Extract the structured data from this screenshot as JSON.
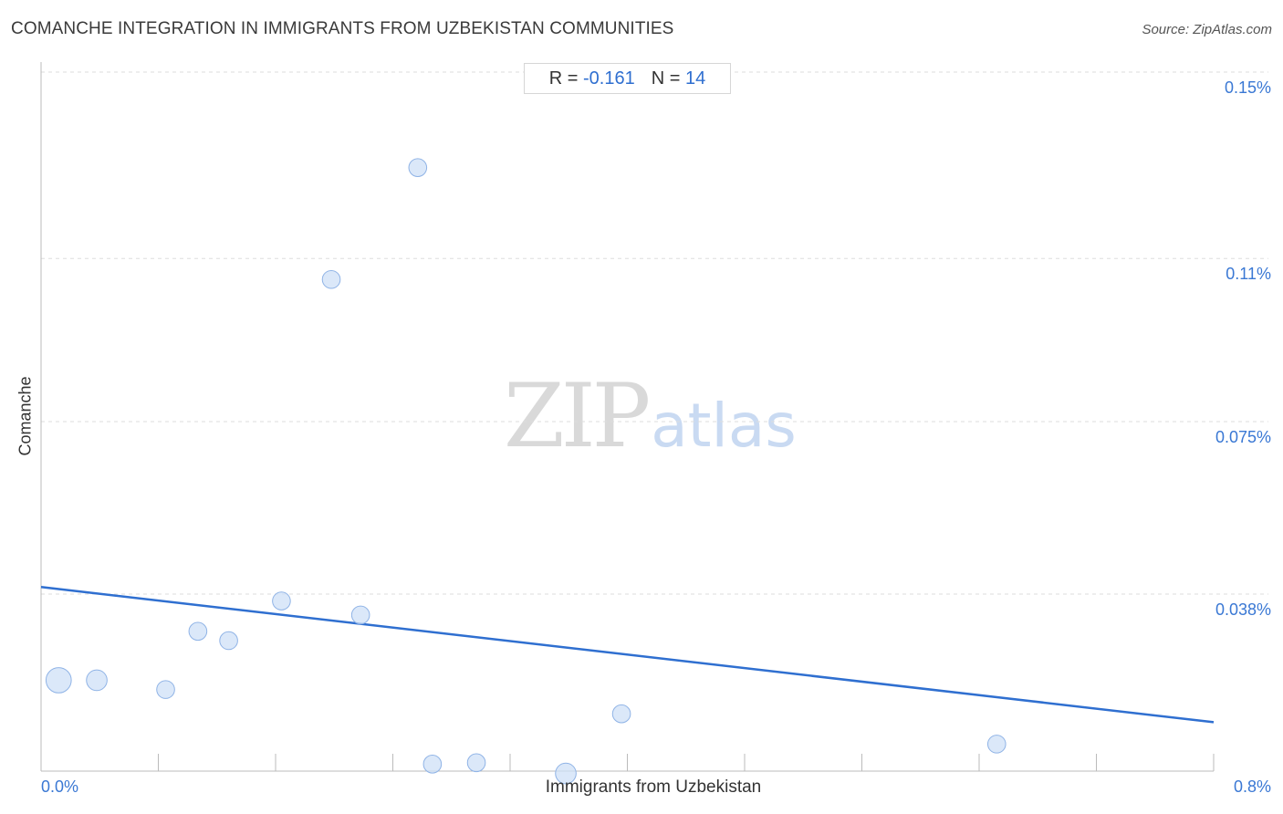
{
  "title": "COMANCHE INTEGRATION IN IMMIGRANTS FROM UZBEKISTAN COMMUNITIES",
  "source": "Source: ZipAtlas.com",
  "stats": {
    "r_label": "R =",
    "r_value": "-0.161",
    "n_label": "N =",
    "n_value": "14"
  },
  "watermark": {
    "zip": "ZIP",
    "atlas": "atlas"
  },
  "colors": {
    "accent": "#2f6fd0",
    "point_fill": "#cfe0f7",
    "point_stroke": "#8fb3e6",
    "grid": "#dddddd"
  },
  "chart_data": {
    "type": "scatter",
    "title": "COMANCHE INTEGRATION IN IMMIGRANTS FROM UZBEKISTAN COMMUNITIES",
    "xlabel": "Immigrants from Uzbekistan",
    "ylabel": "Comanche",
    "xlim": [
      0,
      0.8
    ],
    "ylim": [
      0,
      0.15
    ],
    "x_tick_labels": [
      "0.0%",
      "0.8%"
    ],
    "y_ticks": [
      0.038,
      0.075,
      0.11,
      0.15
    ],
    "y_tick_labels": [
      "0.038%",
      "0.075%",
      "0.11%",
      "0.15%"
    ],
    "grid": true,
    "points": [
      {
        "x": 0.012,
        "y": 0.0195,
        "size": 3
      },
      {
        "x": 0.038,
        "y": 0.0195,
        "size": 2
      },
      {
        "x": 0.085,
        "y": 0.0175,
        "size": 1.5
      },
      {
        "x": 0.107,
        "y": 0.03,
        "size": 1.5
      },
      {
        "x": 0.128,
        "y": 0.028,
        "size": 1.5
      },
      {
        "x": 0.164,
        "y": 0.0365,
        "size": 1.5
      },
      {
        "x": 0.198,
        "y": 0.1055,
        "size": 1.5
      },
      {
        "x": 0.218,
        "y": 0.0335,
        "size": 1.5
      },
      {
        "x": 0.257,
        "y": 0.1295,
        "size": 1.5
      },
      {
        "x": 0.267,
        "y": 0.0015,
        "size": 1.5
      },
      {
        "x": 0.297,
        "y": 0.0018,
        "size": 1.5
      },
      {
        "x": 0.358,
        "y": -0.0005,
        "size": 2
      },
      {
        "x": 0.396,
        "y": 0.0123,
        "size": 1.5
      },
      {
        "x": 0.652,
        "y": 0.0058,
        "size": 1.5
      }
    ],
    "trend_line": {
      "x": [
        0,
        0.8
      ],
      "y": [
        0.0395,
        0.0105
      ]
    }
  }
}
